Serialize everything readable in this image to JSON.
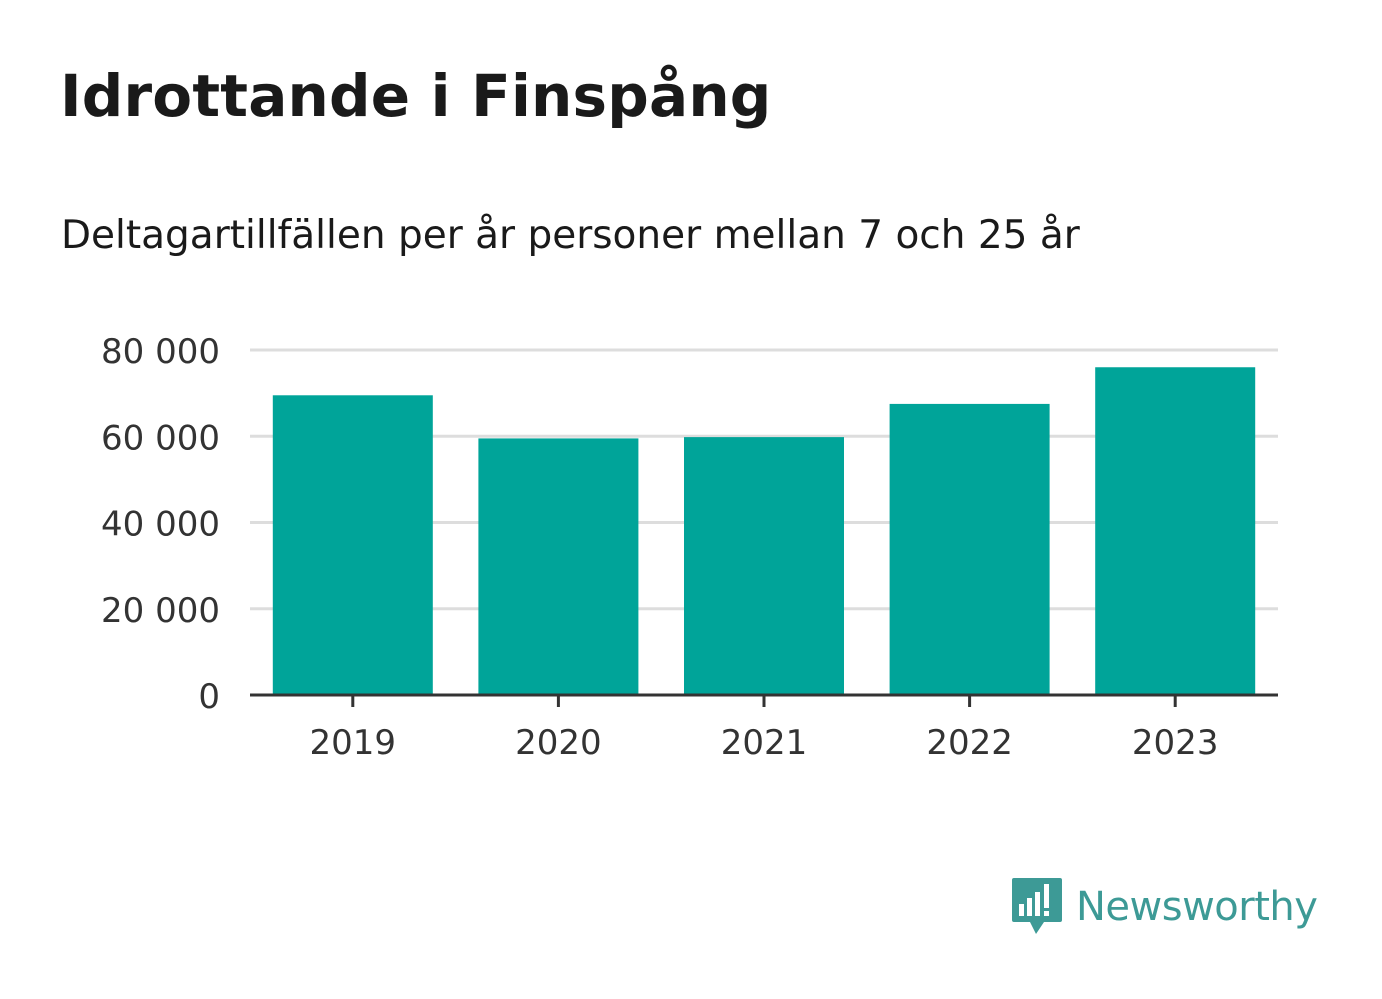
{
  "title": "Idrottande i Finspång",
  "subtitle": "Deltagartillfällen per år personer mellan 7 och 25 år",
  "brand": {
    "name": "Newsworthy",
    "icon": "newsworthy-logo-icon",
    "color": "#3d9a96"
  },
  "colors": {
    "bar": "#00a499",
    "grid": "#dddddd",
    "axis": "#333333",
    "tick_text": "#333333"
  },
  "chart_data": {
    "type": "bar",
    "categories": [
      "2019",
      "2020",
      "2021",
      "2022",
      "2023"
    ],
    "values": [
      69500,
      59500,
      59800,
      67500,
      76000
    ],
    "ylim": [
      0,
      80000
    ],
    "yticks": [
      0,
      20000,
      40000,
      60000,
      80000
    ],
    "ytick_labels": [
      "0",
      "20 000",
      "40 000",
      "60 000",
      "80 000"
    ],
    "grid": true,
    "legend": "none"
  }
}
